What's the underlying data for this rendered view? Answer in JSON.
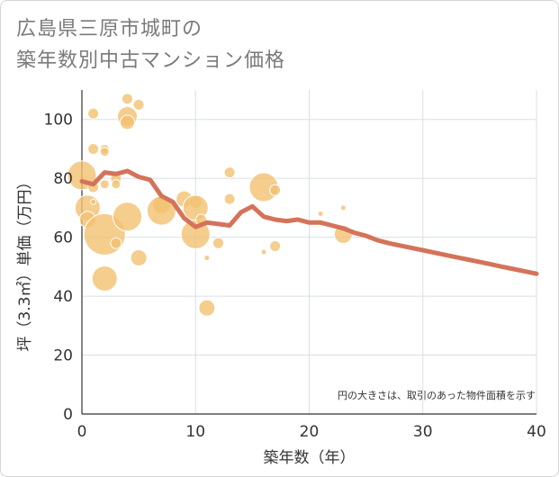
{
  "title_line1": "広島県三原市城町の",
  "title_line2": "築年数別中古マンション価格",
  "chart_data": {
    "type": "scatter",
    "xlabel": "築年数（年）",
    "ylabel": "坪（3.3㎡）単価（万円）",
    "xlim": [
      0,
      40
    ],
    "ylim": [
      0,
      110
    ],
    "x_ticks": [
      0,
      10,
      20,
      30,
      40
    ],
    "y_ticks": [
      0,
      20,
      40,
      60,
      80,
      100
    ],
    "grid": true,
    "note": "円の大きさは、取引のあった物件面積を示す",
    "colors": {
      "bubble": "#f2c071",
      "line": "#d4735a",
      "grid": "#d8dfe6",
      "axis": "#333333"
    },
    "bubbles": [
      {
        "x": 0,
        "y": 81,
        "size": 16
      },
      {
        "x": 0.5,
        "y": 70,
        "size": 14
      },
      {
        "x": 0.5,
        "y": 66,
        "size": 9
      },
      {
        "x": 1,
        "y": 102,
        "size": 6
      },
      {
        "x": 1,
        "y": 90,
        "size": 6
      },
      {
        "x": 1,
        "y": 77,
        "size": 6
      },
      {
        "x": 1,
        "y": 72,
        "size": 3
      },
      {
        "x": 2,
        "y": 90,
        "size": 5
      },
      {
        "x": 2,
        "y": 89,
        "size": 5
      },
      {
        "x": 2,
        "y": 78,
        "size": 5
      },
      {
        "x": 2,
        "y": 61,
        "size": 23
      },
      {
        "x": 2,
        "y": 46,
        "size": 14
      },
      {
        "x": 3,
        "y": 80,
        "size": 6
      },
      {
        "x": 3,
        "y": 78,
        "size": 5
      },
      {
        "x": 3,
        "y": 58,
        "size": 6
      },
      {
        "x": 4,
        "y": 107,
        "size": 6
      },
      {
        "x": 4,
        "y": 101,
        "size": 11
      },
      {
        "x": 4,
        "y": 99,
        "size": 8
      },
      {
        "x": 4,
        "y": 67,
        "size": 16
      },
      {
        "x": 5,
        "y": 105,
        "size": 6
      },
      {
        "x": 5,
        "y": 53,
        "size": 9
      },
      {
        "x": 7,
        "y": 71,
        "size": 10
      },
      {
        "x": 7,
        "y": 69,
        "size": 16
      },
      {
        "x": 9,
        "y": 73,
        "size": 9
      },
      {
        "x": 10,
        "y": 72,
        "size": 7
      },
      {
        "x": 10,
        "y": 70,
        "size": 14
      },
      {
        "x": 10,
        "y": 61,
        "size": 16
      },
      {
        "x": 10.5,
        "y": 66,
        "size": 6
      },
      {
        "x": 11,
        "y": 53,
        "size": 3
      },
      {
        "x": 11,
        "y": 36,
        "size": 9
      },
      {
        "x": 12,
        "y": 58,
        "size": 6
      },
      {
        "x": 13,
        "y": 82,
        "size": 6
      },
      {
        "x": 13,
        "y": 73,
        "size": 6
      },
      {
        "x": 16,
        "y": 77,
        "size": 16
      },
      {
        "x": 16,
        "y": 55,
        "size": 3
      },
      {
        "x": 17,
        "y": 76,
        "size": 6
      },
      {
        "x": 17,
        "y": 57,
        "size": 6
      },
      {
        "x": 21,
        "y": 68,
        "size": 3
      },
      {
        "x": 23,
        "y": 70,
        "size": 3
      },
      {
        "x": 23,
        "y": 61,
        "size": 10
      }
    ],
    "line": {
      "x": [
        0,
        1,
        2,
        3,
        4,
        5,
        6,
        7,
        8,
        9,
        10,
        11,
        12,
        13,
        14,
        15,
        16,
        17,
        18,
        19,
        20,
        21,
        22,
        23,
        24,
        25,
        26,
        27,
        28,
        29,
        30,
        31,
        32,
        33,
        34,
        35,
        36,
        37,
        38,
        39,
        40
      ],
      "y": [
        79,
        78,
        82,
        81.5,
        82.5,
        80.5,
        79.5,
        74,
        72,
        66.5,
        63.5,
        65,
        64.5,
        64,
        68.5,
        70.5,
        67,
        66,
        65.5,
        66,
        65,
        65,
        64,
        63,
        61.5,
        60.5,
        59,
        58,
        57.2,
        56.4,
        55.6,
        54.8,
        54,
        53.2,
        52.4,
        51.6,
        50.8,
        50,
        49.2,
        48.4,
        47.6
      ]
    }
  }
}
